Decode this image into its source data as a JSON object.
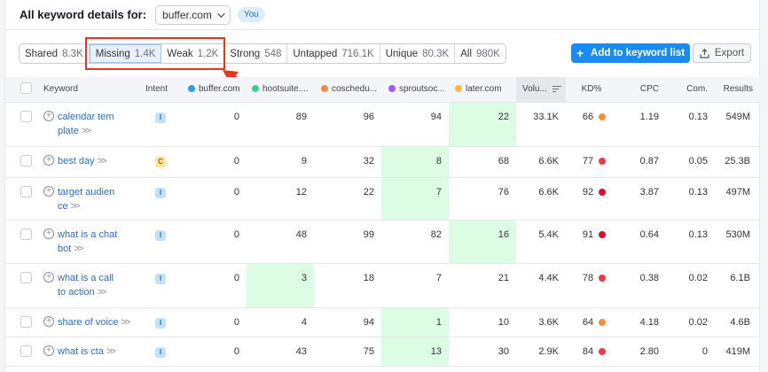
{
  "header": {
    "title": "All keyword details for:",
    "domain": "buffer.com",
    "badge": "You"
  },
  "filters": [
    {
      "label": "Shared",
      "count": "8.3K",
      "active": false
    },
    {
      "label": "Missing",
      "count": "1.4K",
      "active": true
    },
    {
      "label": "Weak",
      "count": "1.2K",
      "active": false
    },
    {
      "label": "Strong",
      "count": "548",
      "active": false
    },
    {
      "label": "Untapped",
      "count": "716.1K",
      "active": false
    },
    {
      "label": "Unique",
      "count": "80.3K",
      "active": false
    },
    {
      "label": "All",
      "count": "980K",
      "active": false
    }
  ],
  "actions": {
    "add_label": "Add to keyword list",
    "add_icon": "+",
    "export_label": "Export"
  },
  "colors": {
    "accent": "#1a8bf5",
    "highlight_green": "#dcfce4",
    "annotation_red": "#e8351f",
    "kd_orange": "#ff8c3a",
    "kd_red": "#f0384a",
    "kd_darkred": "#d4112f"
  },
  "table": {
    "columns": {
      "keyword": "Keyword",
      "intent": "Intent",
      "buffer": {
        "label": "buffer.com",
        "color": "#2a9df4"
      },
      "hootsuite": {
        "label": "hootsuite....",
        "color": "#3ccf91"
      },
      "coschedule": {
        "label": "coschedu...",
        "color": "#ff8a3d"
      },
      "sproutsocial": {
        "label": "sproutsoc...",
        "color": "#a55bf0"
      },
      "later": {
        "label": "later.com",
        "color": "#ffb938"
      },
      "volume": "Volu...",
      "kd": "KD%",
      "cpc": "CPC",
      "com": "Com.",
      "results": "Results"
    },
    "rows": [
      {
        "keyword_l1": "calendar tem",
        "keyword_l2": "plate",
        "intent": "I",
        "buffer": "0",
        "hootsuite": "89",
        "coschedule": "96",
        "sproutsocial": "94",
        "later": "22",
        "green": "later",
        "volume": "33.1K",
        "kd": "66",
        "kd_color": "#ff8c3a",
        "cpc": "1.19",
        "com": "0.13",
        "results": "549M"
      },
      {
        "keyword_l1": "best day",
        "keyword_l2": "",
        "intent": "C",
        "buffer": "0",
        "hootsuite": "9",
        "coschedule": "32",
        "sproutsocial": "8",
        "later": "68",
        "green": "sproutsocial",
        "volume": "6.6K",
        "kd": "77",
        "kd_color": "#f0384a",
        "cpc": "0.87",
        "com": "0.05",
        "results": "25.3B"
      },
      {
        "keyword_l1": "target audien",
        "keyword_l2": "ce",
        "intent": "I",
        "buffer": "0",
        "hootsuite": "12",
        "coschedule": "22",
        "sproutsocial": "7",
        "later": "76",
        "green": "sproutsocial",
        "volume": "6.6K",
        "kd": "92",
        "kd_color": "#d4112f",
        "cpc": "3.87",
        "com": "0.13",
        "results": "497M"
      },
      {
        "keyword_l1": "what is a chat",
        "keyword_l2": "bot",
        "intent": "I",
        "buffer": "0",
        "hootsuite": "48",
        "coschedule": "99",
        "sproutsocial": "82",
        "later": "16",
        "green": "later",
        "volume": "5.4K",
        "kd": "91",
        "kd_color": "#d4112f",
        "cpc": "0.64",
        "com": "0.13",
        "results": "530M"
      },
      {
        "keyword_l1": "what is a call",
        "keyword_l2": "to action",
        "intent": "I",
        "buffer": "0",
        "hootsuite": "3",
        "coschedule": "18",
        "sproutsocial": "7",
        "later": "21",
        "green": "hootsuite",
        "volume": "4.4K",
        "kd": "78",
        "kd_color": "#f0384a",
        "cpc": "0.38",
        "com": "0.02",
        "results": "6.1B"
      },
      {
        "keyword_l1": "share of voice",
        "keyword_l2": "",
        "intent": "I",
        "buffer": "0",
        "hootsuite": "4",
        "coschedule": "94",
        "sproutsocial": "1",
        "later": "10",
        "green": "sproutsocial",
        "volume": "3.6K",
        "kd": "64",
        "kd_color": "#ff8c3a",
        "cpc": "4.18",
        "com": "0.02",
        "results": "4.6B"
      },
      {
        "keyword_l1": "what is cta",
        "keyword_l2": "",
        "intent": "I",
        "buffer": "0",
        "hootsuite": "43",
        "coschedule": "75",
        "sproutsocial": "13",
        "later": "30",
        "green": "sproutsocial",
        "volume": "2.9K",
        "kd": "84",
        "kd_color": "#f0384a",
        "cpc": "2.80",
        "com": "0",
        "results": "419M"
      }
    ]
  }
}
